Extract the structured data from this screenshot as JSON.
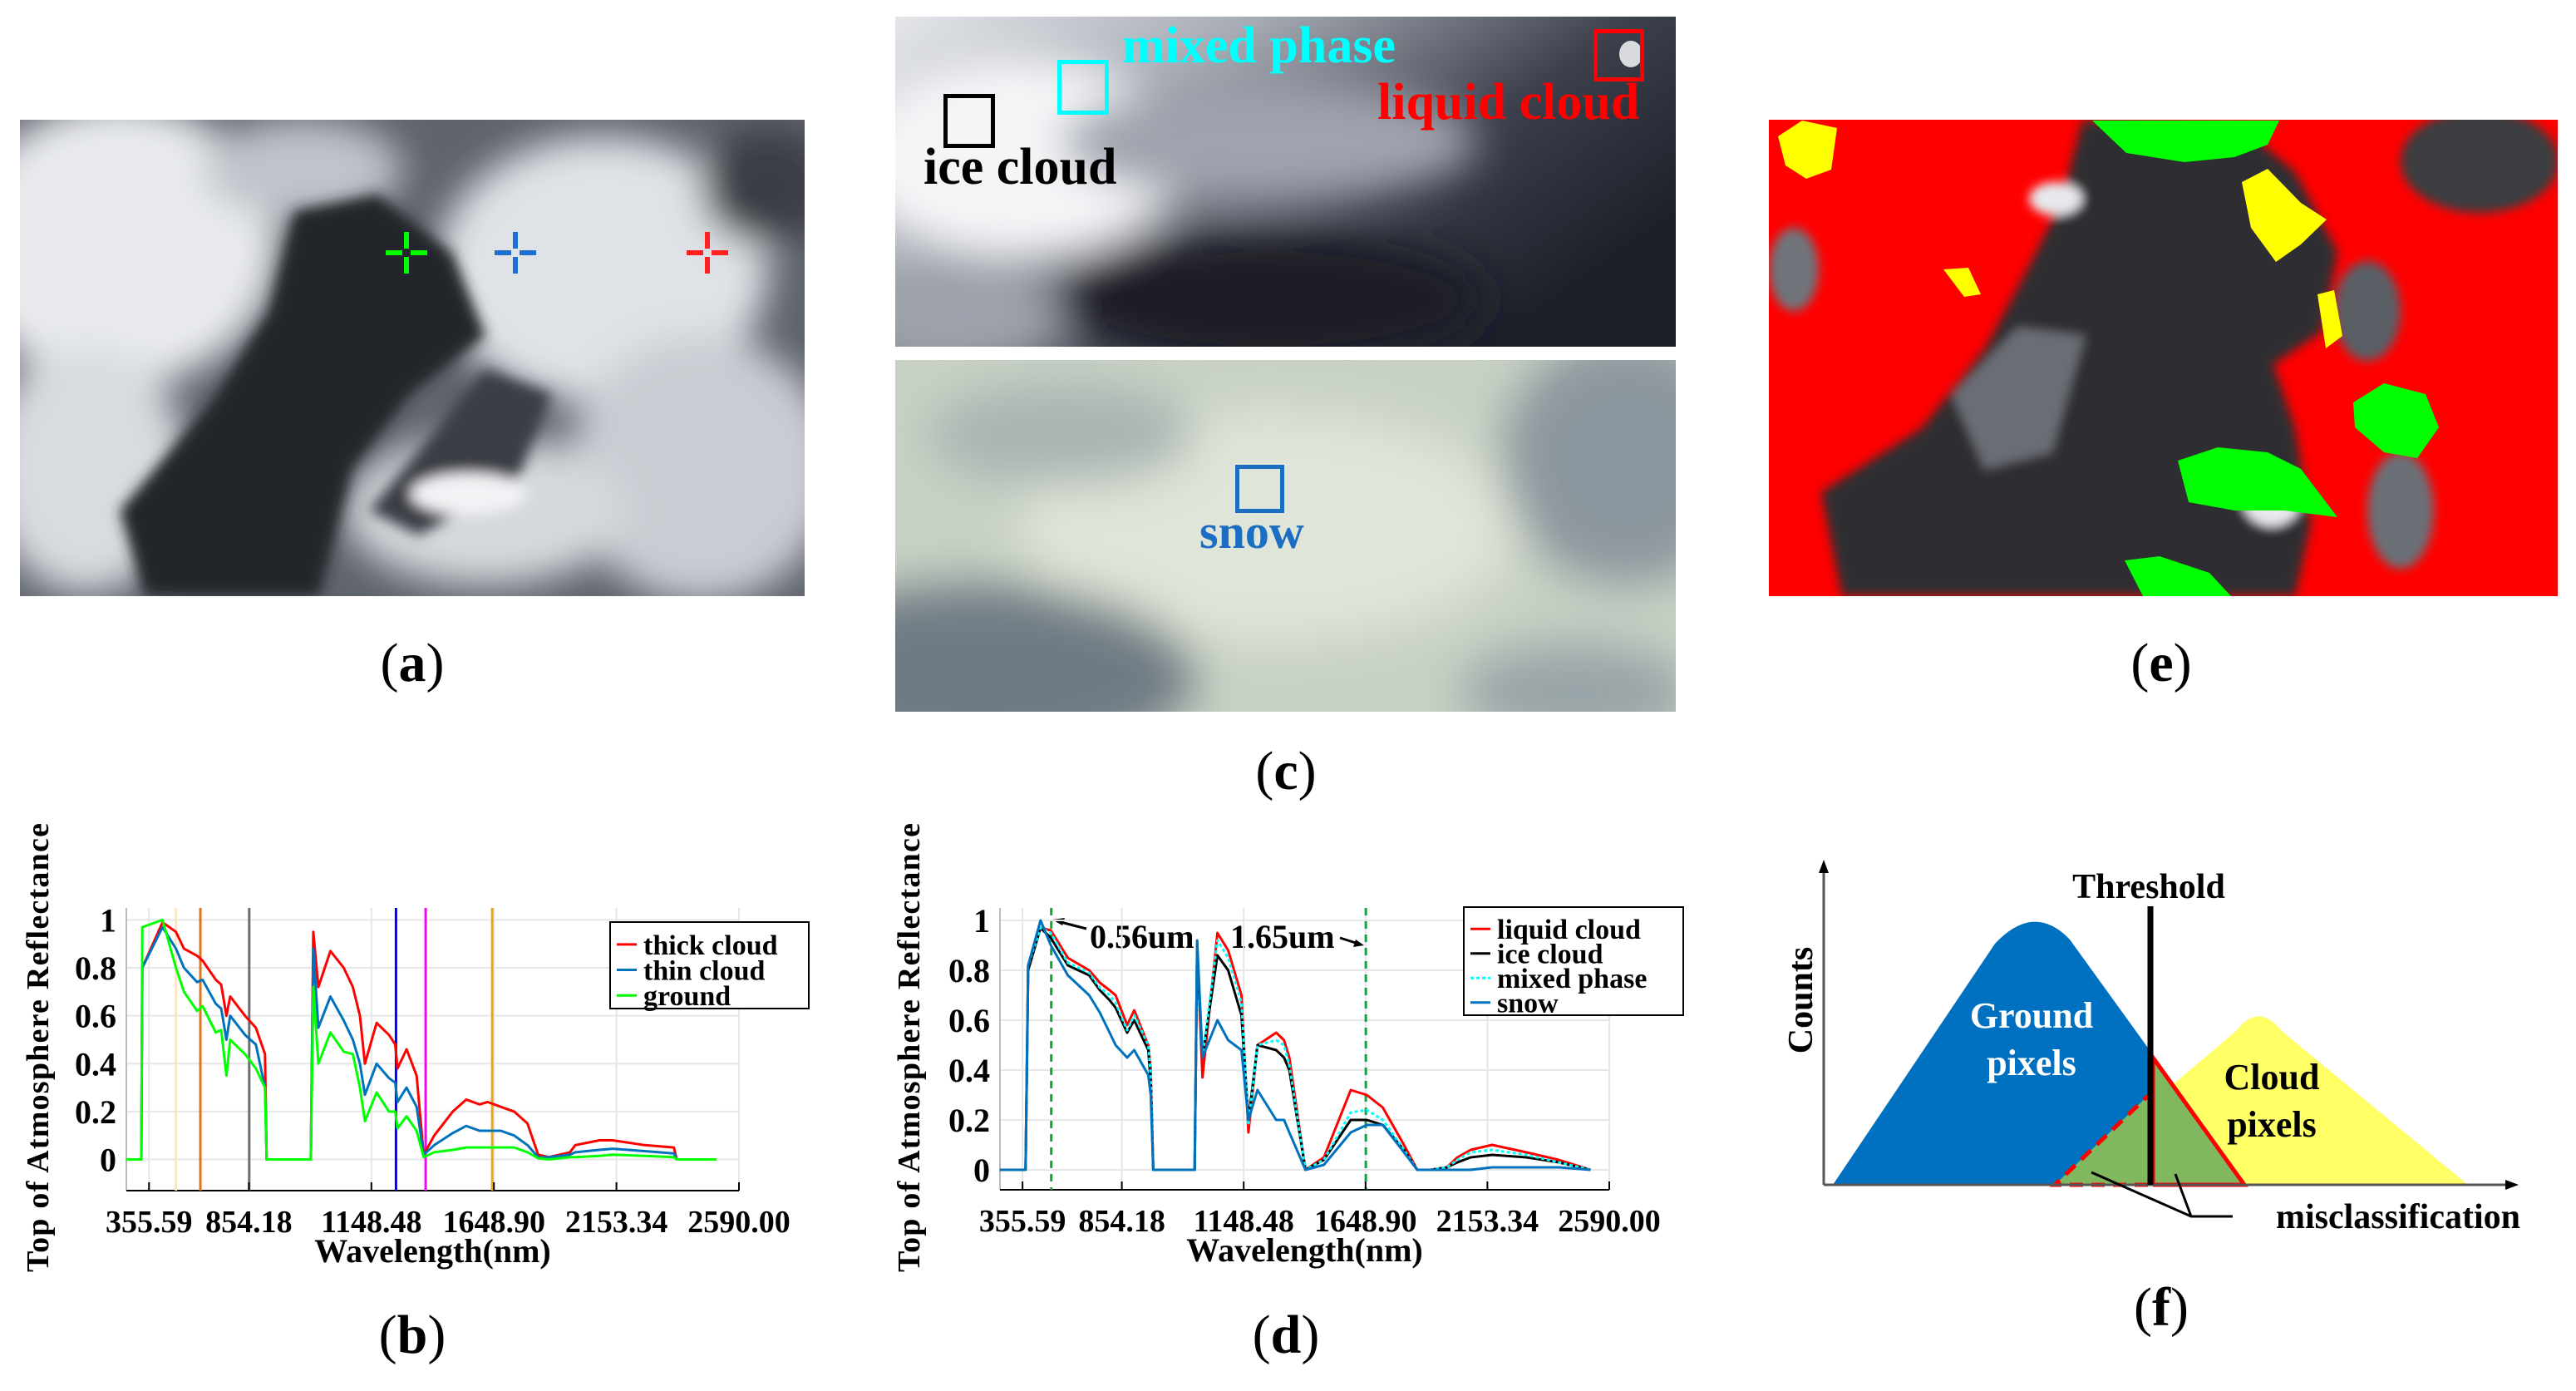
{
  "panels": {
    "a": {
      "label_open": "(",
      "label_letter": "a",
      "label_close": ")",
      "markers": [
        {
          "color": "#00ff00"
        },
        {
          "color": "#1f6fd0"
        },
        {
          "color": "#ff2020"
        }
      ]
    },
    "b": {
      "label_open": "(",
      "label_letter": "b",
      "label_close": ")"
    },
    "c": {
      "label_open": "(",
      "label_letter": "c",
      "label_close": ")",
      "ice_cloud": {
        "text": "ice cloud",
        "color": "#000000"
      },
      "mixed_phase": {
        "text": "mixed phase",
        "color": "#00ffff"
      },
      "liquid_cloud": {
        "text": "liquid cloud",
        "color": "#ff0000"
      },
      "snow": {
        "text": "snow",
        "color": "#1a6fc4"
      }
    },
    "d": {
      "label_open": "(",
      "label_letter": "d",
      "label_close": ")",
      "annotation_1": "0.56um",
      "annotation_2": "1.65um"
    },
    "e": {
      "label_open": "(",
      "label_letter": "e",
      "label_close": ")",
      "class_colors": {
        "red": "#ff0000",
        "yellow": "#ffff00",
        "green": "#00ff00"
      }
    },
    "f": {
      "label_open": "(",
      "label_letter": "f",
      "label_close": ")",
      "threshold": "Threshold",
      "ylabel": "Counts",
      "ground_1": "Ground",
      "ground_2": "pixels",
      "cloud_1": "Cloud",
      "cloud_2": "pixels",
      "misclassification": "misclassification",
      "colors": {
        "ground": "#0070c0",
        "cloud": "#ffff66",
        "overlap": "#80b860",
        "outline": "#ff0000"
      }
    }
  },
  "chart_data": [
    {
      "type": "line",
      "panel": "b",
      "xlabel": "Wavelength(nm)",
      "ylabel": "Top of Atmosphere Reflectance",
      "x_tick_labels": [
        "355.59",
        "854.18",
        "1148.48",
        "1648.90",
        "2153.34",
        "2590.00"
      ],
      "y_ticks": [
        0,
        0.2,
        0.4,
        0.6,
        0.8,
        1
      ],
      "y_tick_labels": [
        "0",
        "0.2",
        "0.4",
        "0.6",
        "0.8",
        "1"
      ],
      "ylim": [
        -0.13,
        1.05
      ],
      "grid": true,
      "legend": "top-right",
      "x": [
        242,
        317,
        322,
        423,
        490,
        530,
        596,
        623,
        689,
        716,
        742,
        761,
        835,
        871,
        893,
        897,
        1003,
        1009,
        1021,
        1050,
        1082,
        1104,
        1121,
        1133,
        1170,
        1220,
        1246,
        1255,
        1292,
        1333,
        1362,
        1405,
        1481,
        1536,
        1590,
        1623,
        1677,
        1732,
        1787,
        1831,
        1875,
        1962,
        1984,
        2083,
        2138,
        2254,
        2358,
        2368,
        2510
      ],
      "series": [
        {
          "name": "thick cloud",
          "color": "#ff0000",
          "values": [
            0,
            0,
            0.8,
            0.99,
            0.95,
            0.88,
            0.85,
            0.83,
            0.75,
            0.73,
            0.6,
            0.68,
            0.6,
            0.55,
            0.44,
            0,
            0,
            0.95,
            0.72,
            0.87,
            0.8,
            0.72,
            0.6,
            0.4,
            0.57,
            0.52,
            0.48,
            0.38,
            0.46,
            0.35,
            0.02,
            0.1,
            0.2,
            0.25,
            0.23,
            0.24,
            0.22,
            0.2,
            0.15,
            0.02,
            0.01,
            0.03,
            0.06,
            0.08,
            0.08,
            0.06,
            0.05,
            0,
            0
          ]
        },
        {
          "name": "thin cloud",
          "color": "#0072bd",
          "values": [
            0,
            0,
            0.8,
            0.97,
            0.88,
            0.8,
            0.74,
            0.75,
            0.65,
            0.63,
            0.5,
            0.6,
            0.52,
            0.48,
            0.3,
            0,
            0,
            0.88,
            0.55,
            0.68,
            0.58,
            0.5,
            0.4,
            0.27,
            0.4,
            0.34,
            0.32,
            0.24,
            0.3,
            0.22,
            0.02,
            0.06,
            0.11,
            0.14,
            0.12,
            0.12,
            0.12,
            0.1,
            0.06,
            0.01,
            0.01,
            0.02,
            0.03,
            0.04,
            0.045,
            0.035,
            0.025,
            0,
            0
          ]
        },
        {
          "name": "ground",
          "color": "#00ff00",
          "values": [
            0,
            0,
            0.97,
            1.0,
            0.8,
            0.7,
            0.62,
            0.64,
            0.53,
            0.54,
            0.35,
            0.5,
            0.44,
            0.38,
            0.3,
            0,
            0,
            0.72,
            0.4,
            0.53,
            0.45,
            0.44,
            0.3,
            0.16,
            0.28,
            0.2,
            0.2,
            0.13,
            0.18,
            0.12,
            0.01,
            0.03,
            0.04,
            0.05,
            0.05,
            0.05,
            0.05,
            0.05,
            0.03,
            0.005,
            0,
            0.01,
            0.01,
            0.015,
            0.02,
            0.015,
            0.01,
            0,
            0
          ]
        }
      ],
      "vlines": [
        {
          "x": 490,
          "color": "#fde5c8",
          "style": "solid"
        },
        {
          "x": 612,
          "color": "#d9771e",
          "style": "solid"
        },
        {
          "x": 855,
          "color": "#6e6e6e",
          "style": "solid"
        },
        {
          "x": 1249,
          "color": "#0000ff",
          "style": "solid"
        },
        {
          "x": 1370,
          "color": "#ff00ff",
          "style": "solid"
        },
        {
          "x": 1642,
          "color": "#eda51a",
          "style": "solid"
        }
      ]
    },
    {
      "type": "line",
      "panel": "d",
      "xlabel": "Wavelength(nm)",
      "ylabel": "Top of Atmosphere Reflectance",
      "x_tick_labels": [
        "355.59",
        "854.18",
        "1148.48",
        "1648.90",
        "2153.34",
        "2590.00"
      ],
      "y_ticks": [
        0,
        0.2,
        0.4,
        0.6,
        0.8,
        1
      ],
      "y_tick_labels": [
        "0",
        "0.2",
        "0.4",
        "0.6",
        "0.8",
        "1"
      ],
      "ylim": [
        -0.08,
        1.05
      ],
      "grid": true,
      "legend": "top-right",
      "x": [
        242,
        371,
        384,
        446,
        498,
        583,
        690,
        744,
        793,
        823,
        867,
        884,
        918,
        924,
        930,
        1030,
        1036,
        1049,
        1085,
        1111,
        1143,
        1168,
        1205,
        1282,
        1314,
        1336,
        1402,
        1478,
        1588,
        1654,
        1720,
        1808,
        1863,
        1918,
        1985,
        2029,
        2084,
        2170,
        2294,
        2409,
        2523
      ],
      "series": [
        {
          "name": "liquid cloud",
          "color": "#ff0000",
          "style": "solid",
          "values": [
            0,
            0,
            0.82,
            0.97,
            0.96,
            0.85,
            0.8,
            0.75,
            0.72,
            0.7,
            0.58,
            0.64,
            0.5,
            0.4,
            0,
            0,
            0.9,
            0.37,
            0.95,
            0.88,
            0.7,
            0.15,
            0.5,
            0.55,
            0.52,
            0.45,
            0,
            0.05,
            0.32,
            0.3,
            0.25,
            0.1,
            0,
            0,
            0.01,
            0.05,
            0.08,
            0.1,
            0.07,
            0.04,
            0
          ]
        },
        {
          "name": "ice cloud",
          "color": "#000000",
          "style": "solid",
          "values": [
            0,
            0,
            0.8,
            0.97,
            0.93,
            0.82,
            0.78,
            0.72,
            0.68,
            0.65,
            0.55,
            0.6,
            0.48,
            0.35,
            0,
            0,
            0.88,
            0.45,
            0.86,
            0.8,
            0.62,
            0.2,
            0.5,
            0.48,
            0.45,
            0.4,
            0,
            0.04,
            0.2,
            0.2,
            0.18,
            0.08,
            0,
            0,
            0.01,
            0.03,
            0.05,
            0.06,
            0.05,
            0.03,
            0
          ]
        },
        {
          "name": "mixed phase",
          "color": "#00ffff",
          "style": "dotted",
          "values": [
            0,
            0,
            0.82,
            0.97,
            0.95,
            0.83,
            0.79,
            0.73,
            0.7,
            0.67,
            0.56,
            0.62,
            0.5,
            0.38,
            0,
            0,
            0.92,
            0.45,
            0.92,
            0.85,
            0.67,
            0.18,
            0.5,
            0.52,
            0.5,
            0.42,
            0,
            0.04,
            0.23,
            0.24,
            0.2,
            0.08,
            0,
            0,
            0.01,
            0.04,
            0.07,
            0.08,
            0.06,
            0.03,
            0
          ]
        },
        {
          "name": "snow",
          "color": "#0072bd",
          "style": "solid",
          "values": [
            0,
            0,
            0.82,
            1.0,
            0.9,
            0.78,
            0.7,
            0.63,
            0.55,
            0.5,
            0.45,
            0.48,
            0.38,
            0.3,
            0,
            0,
            0.92,
            0.45,
            0.6,
            0.52,
            0.48,
            0.2,
            0.32,
            0.2,
            0.2,
            0.15,
            0,
            0.02,
            0.15,
            0.18,
            0.18,
            0.07,
            0,
            0,
            0,
            0,
            0,
            0.01,
            0.01,
            0.01,
            0
          ]
        }
      ],
      "vlines": [
        {
          "x": 500,
          "color": "#1aa040",
          "style": "dashed"
        },
        {
          "x": 1650,
          "color": "#1aa040",
          "style": "dashed"
        }
      ]
    }
  ]
}
